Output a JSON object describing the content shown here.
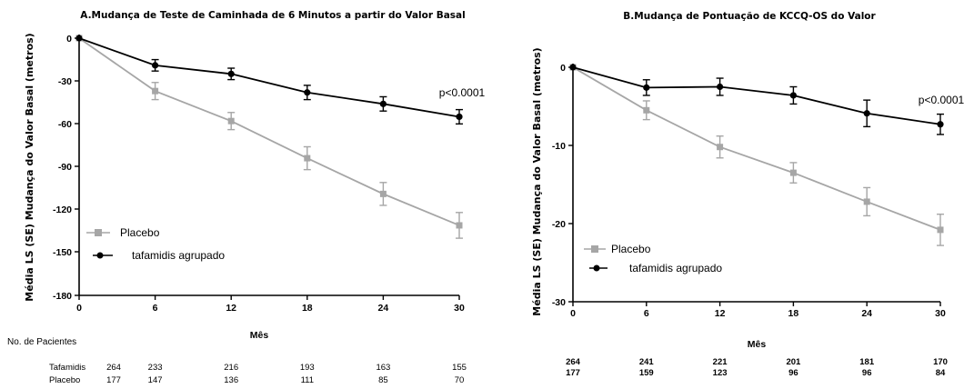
{
  "patients_header": "No. de Pacientes",
  "chart_data": [
    {
      "type": "line",
      "title": "A.Mudança de Teste de Caminhada de 6 Minutos a partir do Valor Basal",
      "xlabel": "Mês",
      "ylabel": "Média LS (SE) Mudança do Valor Basal (metros)",
      "x": [
        0,
        6,
        12,
        18,
        24,
        30
      ],
      "x_ticks": [
        "0",
        "6",
        "12",
        "18",
        "24",
        "30"
      ],
      "y_ticks": [
        "0",
        "-30",
        "-60",
        "-90",
        "-120",
        "-150",
        "-180"
      ],
      "xlim": [
        0,
        30
      ],
      "ylim": [
        -180,
        0
      ],
      "grid": false,
      "legend_position": "bottom-left",
      "annotation": "p<0.0001",
      "series": [
        {
          "name": "Placebo",
          "color": "#a6a6a6",
          "marker": "square",
          "values": [
            0,
            -37,
            -58,
            -84,
            -109,
            -131
          ],
          "se": [
            0,
            6,
            6,
            8,
            8,
            9
          ]
        },
        {
          "name": "tafamidis agrupado",
          "color": "#000000",
          "marker": "circle",
          "values": [
            0,
            -19,
            -25,
            -38,
            -46,
            -55
          ],
          "se": [
            0,
            4,
            4,
            5,
            5,
            5
          ]
        }
      ],
      "table_rows": [
        {
          "label": "Tafamidis",
          "values": [
            "264",
            "233",
            "216",
            "193",
            "163",
            "155"
          ]
        },
        {
          "label": "Placebo",
          "values": [
            "177",
            "147",
            "136",
            "111",
            "85",
            "70"
          ]
        }
      ]
    },
    {
      "type": "line",
      "title": "B.Mudança de Pontuação de KCCQ-OS do Valor",
      "xlabel": "Mês",
      "ylabel": "Média LS (SE) Mudança do Valor Basal (metros)",
      "x": [
        0,
        6,
        12,
        18,
        24,
        30
      ],
      "x_ticks": [
        "0",
        "6",
        "12",
        "18",
        "24",
        "30"
      ],
      "y_ticks": [
        "0",
        "-10",
        "-20",
        "-30"
      ],
      "xlim": [
        0,
        30
      ],
      "ylim": [
        -30,
        0
      ],
      "grid": false,
      "legend_position": "bottom-left",
      "annotation": "p<0.0001",
      "series": [
        {
          "name": "Placebo",
          "color": "#a6a6a6",
          "marker": "square",
          "values": [
            0,
            -5.5,
            -10.2,
            -13.5,
            -17.2,
            -20.8
          ],
          "se": [
            0,
            1.2,
            1.4,
            1.3,
            1.8,
            2.0
          ]
        },
        {
          "name": "tafamidis agrupado",
          "color": "#000000",
          "marker": "circle",
          "values": [
            0,
            -2.6,
            -2.5,
            -3.6,
            -5.9,
            -7.3
          ],
          "se": [
            0,
            1.0,
            1.1,
            1.1,
            1.7,
            1.3
          ]
        }
      ],
      "table_rows": [
        {
          "label": "",
          "values": [
            "264",
            "241",
            "221",
            "201",
            "181",
            "170"
          ]
        },
        {
          "label": "",
          "values": [
            "177",
            "159",
            "123",
            "96",
            "96",
            "84"
          ]
        }
      ]
    }
  ]
}
